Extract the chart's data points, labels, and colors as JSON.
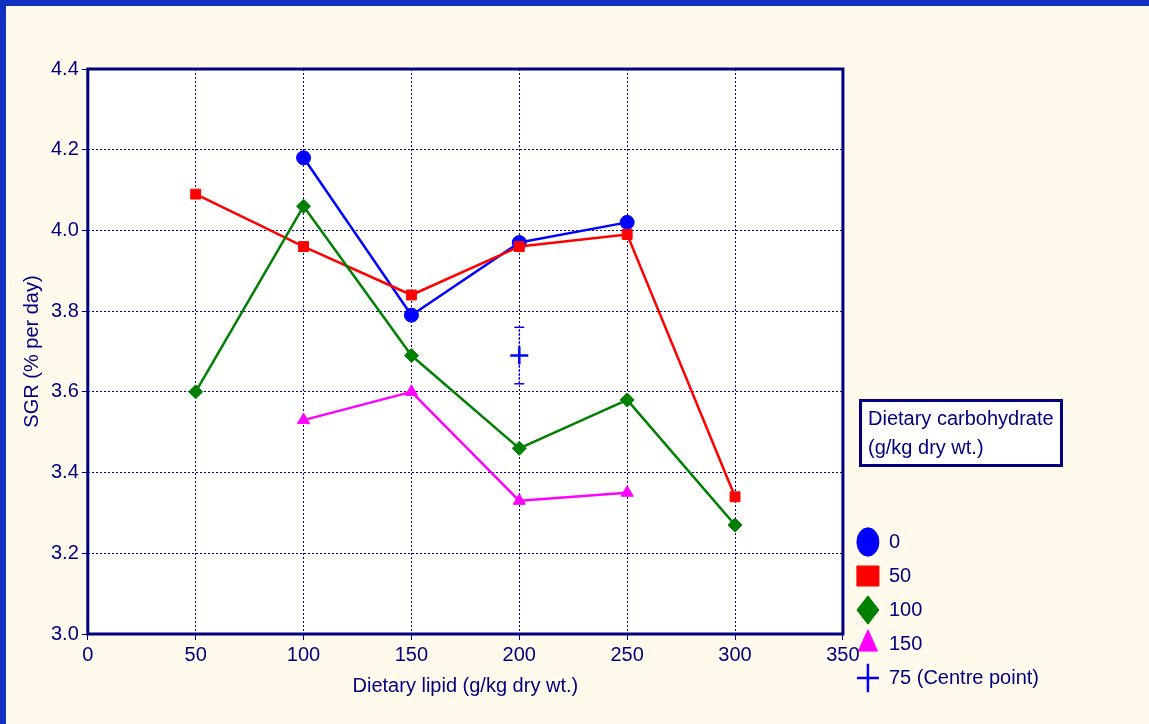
{
  "chart_data": {
    "type": "line",
    "xlabel": "Dietary lipid (g/kg dry wt.)",
    "ylabel": "SGR (% per day)",
    "legend_title": "Dietary carbohydrate (g/kg dry wt.)",
    "xlim": [
      0,
      350
    ],
    "xticks": [
      0,
      50,
      100,
      150,
      200,
      250,
      300,
      350
    ],
    "ylim": [
      3.0,
      4.4
    ],
    "yticks": [
      {
        "value": 3.0,
        "label": "3.0"
      },
      {
        "value": 3.2,
        "label": "3.2"
      },
      {
        "value": 3.4,
        "label": "3.4"
      },
      {
        "value": 3.6,
        "label": "3.6"
      },
      {
        "value": 3.8,
        "label": "3.8"
      },
      {
        "value": 4.0,
        "label": "4.0"
      },
      {
        "value": 4.2,
        "label": "4.2"
      },
      {
        "value": 4.4,
        "label": "4.4"
      }
    ],
    "grid": true,
    "legend": "right",
    "line_style": "solid",
    "series": [
      {
        "name": "0",
        "color": "#0000ff",
        "marker": "circle",
        "x": [
          100,
          150,
          200,
          250
        ],
        "values": [
          4.18,
          3.79,
          3.97,
          4.02
        ]
      },
      {
        "name": "50",
        "color": "#ff0000",
        "marker": "square",
        "x": [
          50,
          100,
          150,
          200,
          250,
          300
        ],
        "values": [
          4.09,
          3.96,
          3.84,
          3.96,
          3.99,
          3.34
        ]
      },
      {
        "name": "100",
        "color": "#008000",
        "marker": "diamond",
        "x": [
          50,
          100,
          150,
          200,
          250,
          300
        ],
        "values": [
          3.6,
          4.06,
          3.69,
          3.46,
          3.58,
          3.27
        ]
      },
      {
        "name": "150",
        "color": "#ff00ff",
        "marker": "triangle",
        "x": [
          100,
          150,
          200,
          250
        ],
        "values": [
          3.53,
          3.6,
          3.33,
          3.35
        ]
      },
      {
        "name": "75 (Centre point)",
        "type": "scatter",
        "color": "#0000ff",
        "marker": "cross",
        "x": [
          200
        ],
        "values": [
          3.69
        ],
        "errors": [
          [
            3.62,
            3.76
          ]
        ]
      }
    ]
  }
}
